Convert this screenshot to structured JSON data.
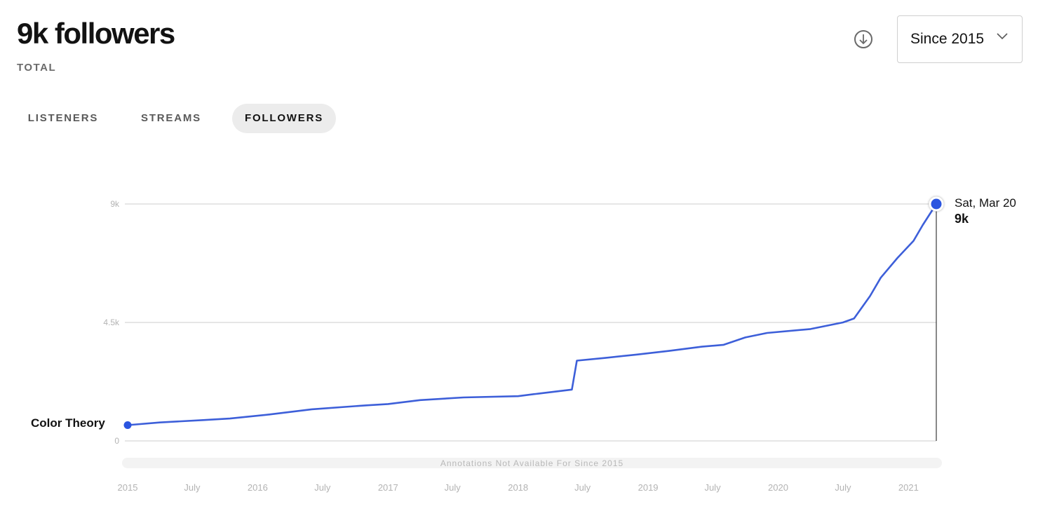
{
  "header": {
    "title": "9k followers",
    "subtitle": "TOTAL",
    "range": "Since 2015"
  },
  "tabs": [
    {
      "label": "LISTENERS",
      "active": false
    },
    {
      "label": "STREAMS",
      "active": false
    },
    {
      "label": "FOLLOWERS",
      "active": true
    }
  ],
  "annotations_note": "Annotations Not Available For Since 2015",
  "start_label": "Color Theory",
  "end_label": {
    "date": "Sat, Mar 20",
    "value": "9k"
  },
  "colors": {
    "line": "#3d5fd9",
    "dot": "#2b55e0",
    "grid": "#cccccc",
    "axis_text": "#b3b3b3"
  },
  "icons": {
    "download": "download-circle-icon",
    "dropdown": "chevron-down-icon"
  },
  "chart_data": {
    "type": "line",
    "title": "",
    "xlabel": "",
    "ylabel": "",
    "x_ticks": [
      "2015",
      "July",
      "2016",
      "July",
      "2017",
      "July",
      "2018",
      "July",
      "2019",
      "July",
      "2020",
      "July",
      "2021"
    ],
    "y_ticks": [
      "0",
      "4.5k",
      "9k"
    ],
    "ylim": [
      0,
      9000
    ],
    "grid": true,
    "series": [
      {
        "x": [
          "2015-01-01",
          "2015-04-01",
          "2015-08-01",
          "2015-10-15",
          "2016-02-01",
          "2016-06-01",
          "2016-11-01",
          "2017-01-01",
          "2017-04-01",
          "2017-08-01",
          "2018-01-01",
          "2018-03-01",
          "2018-06-01",
          "2018-06-15",
          "2018-09-01",
          "2018-12-01",
          "2019-03-01",
          "2019-06-01",
          "2019-08-01",
          "2019-10-01",
          "2019-12-01",
          "2020-04-01",
          "2020-07-01",
          "2020-08-01",
          "2020-09-15",
          "2020-10-15",
          "2020-12-01",
          "2021-01-15",
          "2021-02-10",
          "2021-03-20"
        ],
        "values": [
          600,
          700,
          790,
          850,
          1000,
          1200,
          1350,
          1400,
          1550,
          1650,
          1700,
          1800,
          1950,
          3050,
          3150,
          3280,
          3420,
          3580,
          3650,
          3930,
          4100,
          4250,
          4500,
          4650,
          5500,
          6200,
          6950,
          7600,
          8200,
          9000
        ]
      }
    ]
  }
}
